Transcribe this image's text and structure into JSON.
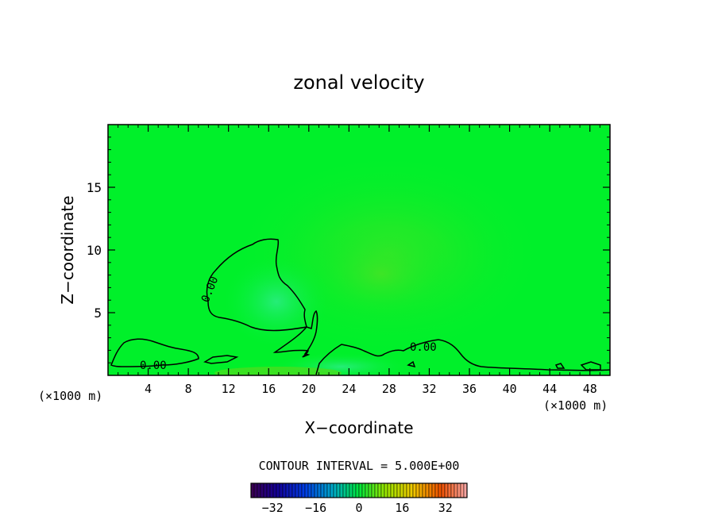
{
  "chart_data": {
    "type": "heatmap",
    "title": "zonal velocity",
    "xlabel": "X−coordinate",
    "ylabel": "Z−coordinate",
    "x_unit_left": "(×1000 m)",
    "x_unit_right": "(×1000 m)",
    "xlim": [
      0,
      50
    ],
    "ylim": [
      0,
      20
    ],
    "x_ticks": [
      4,
      8,
      12,
      16,
      20,
      24,
      28,
      32,
      36,
      40,
      44,
      48
    ],
    "x_tick_labels": [
      "4",
      "8",
      "12",
      "16",
      "20",
      "24",
      "28",
      "32",
      "36",
      "40",
      "44",
      "48"
    ],
    "y_ticks": [
      5,
      10,
      15
    ],
    "y_tick_labels": [
      "5",
      "10",
      "15"
    ],
    "contour_interval_text": "CONTOUR INTERVAL = 5.000E+00",
    "contour_labels": [
      "0.00",
      "0.00",
      "0.00"
    ],
    "colorbar": {
      "min": -40,
      "max": 40,
      "ticks": [
        -32,
        -16,
        0,
        16,
        32
      ],
      "tick_labels": [
        "−32",
        "−16",
        "0",
        "16",
        "32"
      ]
    },
    "field_description": "near-zero zonal velocity field (mostly 0 to +5) with a weak negative region around x≈16, z≈4 bounded by the 0.00 contour",
    "colors": {
      "zero_green": "#00f02a",
      "positive_green": "#3fe828",
      "negative_green": "#2ef07a"
    }
  }
}
